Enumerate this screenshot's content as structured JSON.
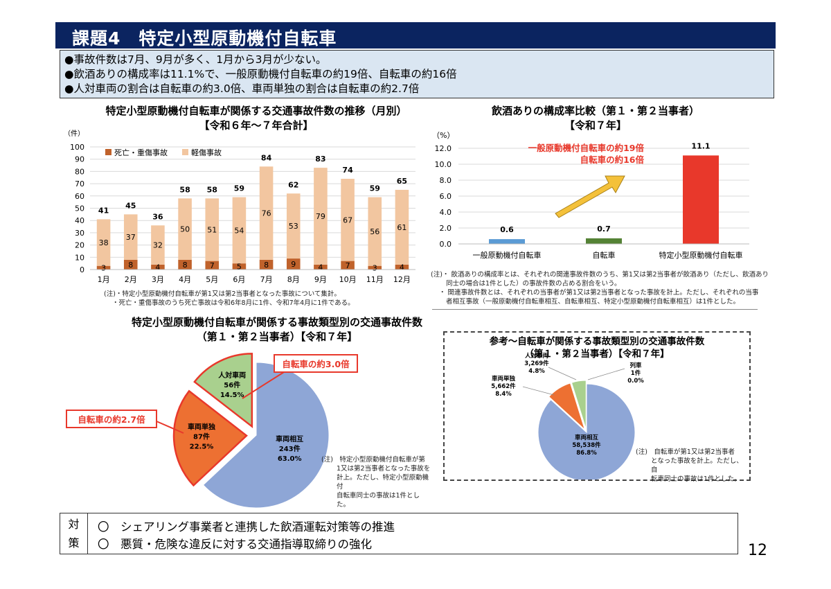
{
  "header": {
    "title": "課題4　特定小型原動機付自転車"
  },
  "summary": {
    "lines": [
      "●事故件数は7月、9月が多く、1月から3月が少ない。",
      "●飲酒ありの構成率は11.1%で、一般原動機付自転車の約19倍、自転車の約16倍",
      "●人対車両の割合は自転車の約3.0倍、車両単独の割合は自転車の約2.7倍"
    ]
  },
  "chart1": {
    "title1": "特定小型原動機付自転車が関係する交通事故件数の推移（月別）",
    "title2": "【令和６年～７年合計】",
    "notes": [
      "(注)・特定小型原動機付自転車が第1又は第2当事者となった事故について集計。",
      "・死亡・重傷事故のうち死亡事故は令和6年8月に1件、令和7年4月に1件である。"
    ]
  },
  "chart2": {
    "title1": "飲酒ありの構成率比較（第１・第２当事者）",
    "title2": "【令和７年】",
    "callout1": "一般原動機付自転車の約19倍",
    "callout2": "自転車の約16倍",
    "notes": [
      "(注)・ 飲酒ありの構成率とは、それぞれの関連事故件数のうち、第1又は第2当事者が飲酒あり（ただし、飲酒あり",
      "同士の場合は1件とした）の事故件数の占める割合をいう。",
      "・ 関連事故件数とは、それぞれの当事者が第1又は第2当事者となった事故を計上。ただし、それぞれの当事",
      "者相互事故（一般原動機付自転車相互、自転車相互、特定小型原動機付自転車相互）は1件とした。"
    ]
  },
  "chart3": {
    "title1": "特定小型原動機付自転車が関係する事故類型別の交通事故件数",
    "title2": "（第１・第２当事者）【令和７年】",
    "callout_a": "自転車の約3.0倍",
    "callout_b": "自転車の約2.7倍",
    "notes": [
      "(注)　特定小型原動機付自転車が第",
      "1又は第2当事者となった事故を",
      "計上。ただし、特定小型原動機付",
      "自転車同士の事故は1件とした。"
    ]
  },
  "chart4": {
    "title1": "参考～自転車が関係する事故類型別の交通事故件数",
    "title2": "（第１・第２当事者）【令和７年】",
    "notes": [
      "(注)　自転車が第1又は第2当事者",
      "となった事故を計上。ただし、自",
      "転車同士の事故は1件とした。"
    ]
  },
  "measures": {
    "label1": "対",
    "label2": "策",
    "item1": "〇　シェアリング事業者と連携した飲酒運転対策等の推進",
    "item2": "〇　悪質・危険な違反に対する交通指導取締りの強化"
  },
  "page_number": "12",
  "chart_data": [
    {
      "type": "bar",
      "stacked": true,
      "categories": [
        "1月",
        "2月",
        "3月",
        "4月",
        "5月",
        "6月",
        "7月",
        "8月",
        "9月",
        "10月",
        "11月",
        "12月"
      ],
      "series": [
        {
          "name": "死亡・重傷事故",
          "values": [
            3,
            8,
            4,
            8,
            7,
            5,
            8,
            9,
            4,
            7,
            3,
            4
          ],
          "color": "#c0622b"
        },
        {
          "name": "軽傷事故",
          "values": [
            38,
            37,
            32,
            50,
            51,
            54,
            76,
            53,
            79,
            67,
            56,
            61
          ],
          "color": "#f2c6a0"
        }
      ],
      "totals": [
        41,
        45,
        36,
        58,
        58,
        59,
        84,
        62,
        83,
        74,
        59,
        65
      ],
      "ylim": [
        0,
        100
      ],
      "yticks": [
        0,
        10,
        20,
        30,
        40,
        50,
        60,
        70,
        80,
        90,
        100
      ],
      "ylabel": "（件）",
      "legend": "top-left"
    },
    {
      "type": "bar",
      "categories": [
        "一般原動機付自転車",
        "自転車",
        "特定小型原動機付自転車"
      ],
      "values": [
        0.6,
        0.7,
        11.1
      ],
      "value_labels": [
        "0.6",
        "0.7",
        "11.1"
      ],
      "colors": [
        "#5b9bd5",
        "#548235",
        "#e8382b"
      ],
      "ylim": [
        0,
        12
      ],
      "yticks": [
        "0.0",
        "2.0",
        "4.0",
        "6.0",
        "8.0",
        "10.0",
        "12.0"
      ],
      "ylabel": "（%）"
    },
    {
      "type": "pie",
      "slices": [
        {
          "name": "車両相互",
          "count": "243件",
          "value": 63.0,
          "pct": "63.0%",
          "color": "#8ea6d6"
        },
        {
          "name": "車両単独",
          "count": "87件",
          "value": 22.5,
          "pct": "22.5%",
          "color": "#ed7032"
        },
        {
          "name": "人対車両",
          "count": "56件",
          "value": 14.5,
          "pct": "14.5%",
          "color": "#a9d08e"
        }
      ]
    },
    {
      "type": "pie",
      "slices": [
        {
          "name": "車両相互",
          "count": "58,538件",
          "value": 86.8,
          "pct": "86.8%",
          "color": "#8ea6d6"
        },
        {
          "name": "車両単独",
          "count": "5,662件",
          "value": 8.4,
          "pct": "8.4%",
          "color": "#ed7032"
        },
        {
          "name": "人対車両",
          "count": "3,269件",
          "value": 4.8,
          "pct": "4.8%",
          "color": "#a9d08e"
        },
        {
          "name": "列車",
          "count": "1件",
          "value": 0.0,
          "pct": "0.0%",
          "color": "#bbbbbb"
        }
      ]
    }
  ]
}
